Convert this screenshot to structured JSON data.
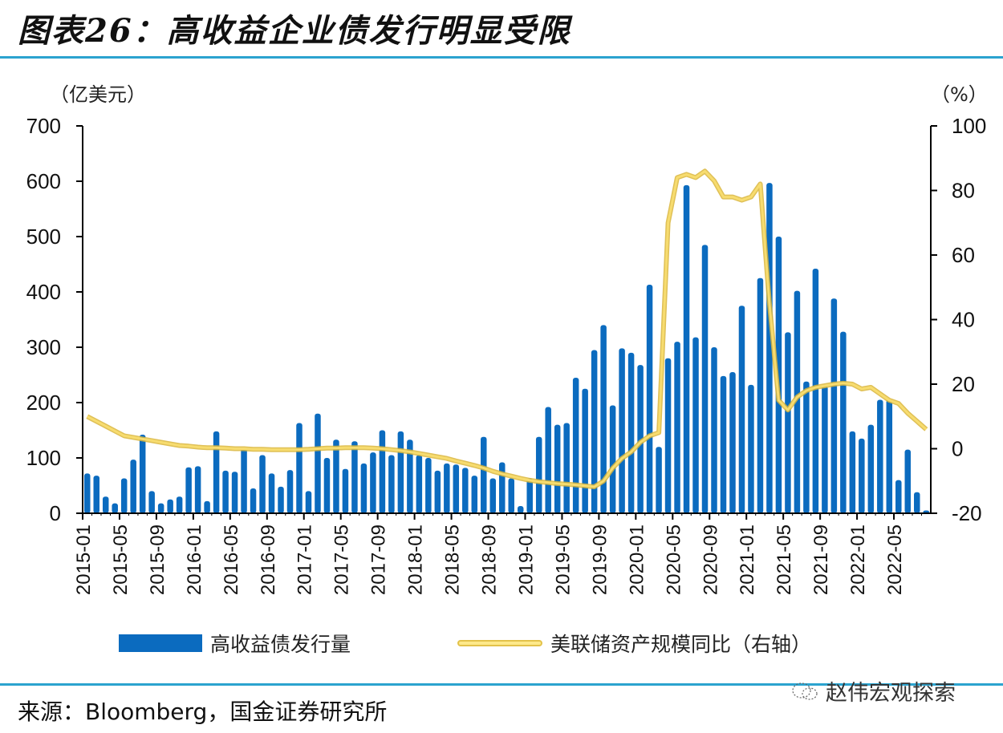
{
  "header": {
    "title": "图表26：高收益企业债发行明显受限"
  },
  "axes": {
    "left_unit": "（亿美元）",
    "right_unit": "（%）"
  },
  "legend": {
    "bar_label": "高收益债发行量",
    "line_label": "美联储资产规模同比（右轴）"
  },
  "footer": {
    "source": "来源：Bloomberg，国金证券研究所",
    "watermark": "赵伟宏观探索"
  },
  "colors": {
    "bar": "#0b6bbf",
    "line": "#f7dc6f",
    "line_edge": "#d9b53a",
    "rule": "#2ba3cf"
  },
  "chart_data": {
    "type": "bar+line",
    "title": "高收益企业债发行明显受限",
    "x_tick_labels": [
      "2015-01",
      "2015-05",
      "2015-09",
      "2016-01",
      "2016-05",
      "2016-09",
      "2017-01",
      "2017-05",
      "2017-09",
      "2018-01",
      "2018-05",
      "2018-09",
      "2019-01",
      "2019-05",
      "2019-09",
      "2020-01",
      "2020-05",
      "2020-09",
      "2021-01",
      "2021-05",
      "2021-09",
      "2022-01",
      "2022-05"
    ],
    "start_month": "2015-01",
    "months_count": 92,
    "left_axis": {
      "label": "（亿美元）",
      "range": [
        0,
        700
      ],
      "ticks": [
        0,
        100,
        200,
        300,
        400,
        500,
        600,
        700
      ]
    },
    "right_axis": {
      "label": "（%）",
      "range": [
        -20,
        100
      ],
      "ticks": [
        -20,
        0,
        20,
        40,
        60,
        80,
        100
      ]
    },
    "series": [
      {
        "name": "高收益债发行量",
        "type": "bar",
        "axis": "left",
        "values": [
          72,
          68,
          30,
          18,
          63,
          97,
          142,
          40,
          18,
          25,
          30,
          83,
          85,
          22,
          148,
          77,
          75,
          118,
          45,
          105,
          72,
          48,
          78,
          163,
          40,
          180,
          100,
          133,
          80,
          130,
          90,
          110,
          150,
          105,
          148,
          133,
          105,
          100,
          77,
          90,
          88,
          82,
          68,
          138,
          63,
          92,
          63,
          13,
          63,
          138,
          192,
          160,
          163,
          245,
          225,
          295,
          340,
          195,
          298,
          290,
          268,
          413,
          120,
          280,
          310,
          593,
          318,
          485,
          300,
          248,
          255,
          375,
          232,
          425,
          597,
          500,
          327,
          402,
          238,
          442,
          230,
          388,
          328,
          148,
          135,
          160,
          205,
          205,
          60,
          115,
          38,
          5
        ]
      },
      {
        "name": "美联储资产规模同比（右轴）",
        "type": "line",
        "axis": "right",
        "values": [
          10,
          8.5,
          7,
          5.5,
          4,
          3.5,
          3,
          2.5,
          2,
          1.5,
          1,
          0.8,
          0.5,
          0.3,
          0.3,
          0.2,
          0,
          0,
          -0.2,
          -0.2,
          -0.3,
          -0.3,
          -0.3,
          -0.3,
          -0.2,
          0,
          0.2,
          0.2,
          0.3,
          0.3,
          0.3,
          0.2,
          0,
          -0.3,
          -0.6,
          -1,
          -1.5,
          -2,
          -2.5,
          -3,
          -3.8,
          -4.5,
          -5.2,
          -6,
          -7,
          -7.8,
          -8.5,
          -9.2,
          -9.8,
          -10.2,
          -10.5,
          -10.8,
          -11,
          -11.2,
          -11.5,
          -11.8,
          -10,
          -6,
          -3,
          -1,
          2,
          4,
          5,
          70,
          84,
          85,
          84,
          86,
          83,
          78,
          78,
          77,
          78,
          82,
          45,
          15,
          12,
          16,
          18,
          19,
          19.5,
          20,
          20.3,
          20,
          18.5,
          19,
          17,
          15,
          14,
          11,
          8.5,
          6
        ]
      }
    ],
    "legend_position": "bottom",
    "grid": false
  }
}
